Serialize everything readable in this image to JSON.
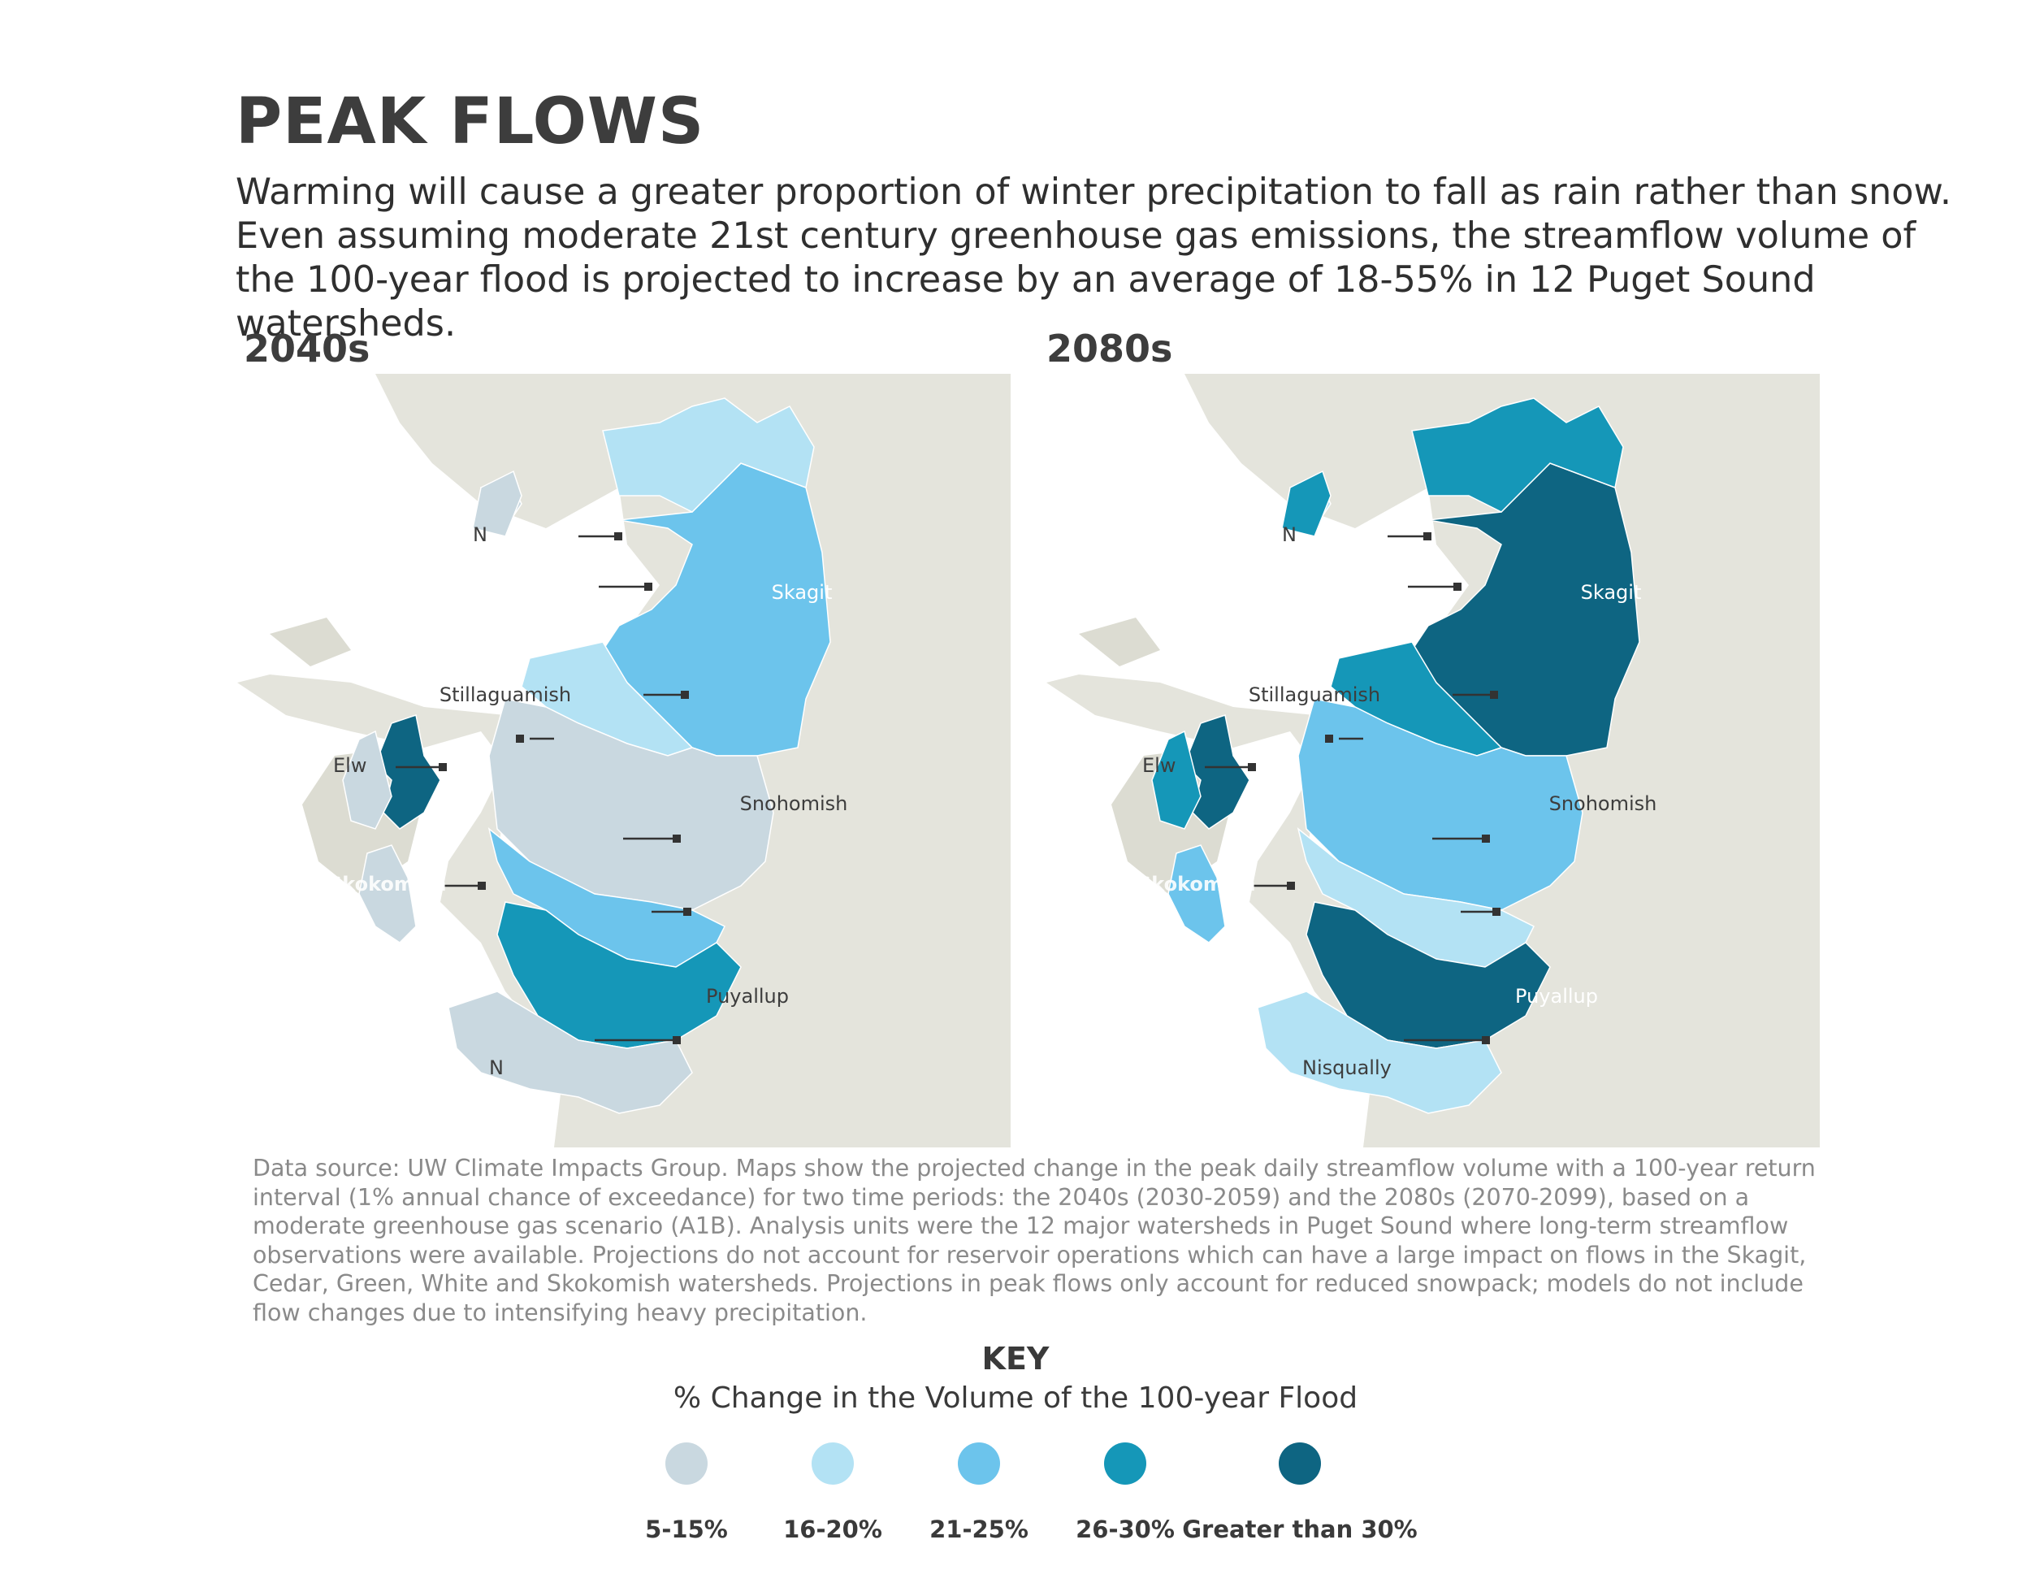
{
  "title": "PEAK FLOWS",
  "intro": "Warming will cause a greater proportion of winter precipitation to fall as rain rather than snow. Even assuming moderate 21st century greenhouse gas emissions, the streamflow volume of the 100-year flood is projected to increase by an average of 18-55% in 12 Puget Sound watersheds.",
  "maps": [
    {
      "period": "2040s",
      "labels": {
        "skagit": "Skagit",
        "stillaguamish": "Stillaguamish",
        "elwha": "Elw",
        "snohomish": "Snohomish",
        "puyallup": "Puyallup",
        "nisqually": "N",
        "north": "N",
        "skokomish": "Skokomish"
      },
      "classes": {
        "skagit": "21-25%",
        "nooksack": "16-20%",
        "samish": "5-15%",
        "stillaguamish": "16-20%",
        "dungeness": "Greater than 30%",
        "elwha": "5-15%",
        "skokomish": "5-15%",
        "snohomish": "5-15%",
        "cedar": "21-25%",
        "puyallup": "26-30%",
        "nisqually": "5-15%"
      }
    },
    {
      "period": "2080s",
      "labels": {
        "skagit": "Skagit",
        "stillaguamish": "Stillaguamish",
        "elwha": "Elw",
        "snohomish": "Snohomish",
        "puyallup": "Puyallup",
        "nisqually": "Nisqually",
        "north": "N",
        "skokomish": "Skokomish"
      },
      "classes": {
        "skagit": "Greater than 30%",
        "nooksack": "26-30%",
        "samish": "16-20%",
        "stillaguamish": "26-30%",
        "dungeness": "Greater than 30%",
        "elwha": "26-30%",
        "skokomish": "21-25%",
        "snohomish": "21-25%",
        "cedar": "16-20%",
        "puyallup": "Greater than 30%",
        "nisqually": "16-20%"
      }
    }
  ],
  "source": "Data source: UW Climate Impacts Group. Maps show the projected change in the peak daily streamflow volume with a 100-year return interval (1% annual chance of exceedance) for two time periods: the 2040s (2030-2059) and the 2080s (2070-2099), based on a moderate greenhouse gas scenario (A1B). Analysis units were the 12 major watersheds in Puget Sound where long-term streamflow observations were available. Projections do not account for reservoir operations which can have a large impact on flows in the Skagit, Cedar, Green, White and Skokomish watersheds. Projections in peak flows only account for reduced snowpack; models do not include flow changes due to intensifying heavy precipitation.",
  "key": {
    "title": "KEY",
    "subtitle": "% Change in the Volume of the 100-year Flood",
    "items": [
      {
        "label": "5-15%",
        "color": "#c9d8e0"
      },
      {
        "label": "16-20%",
        "color": "#b3e2f4"
      },
      {
        "label": "21-25%",
        "color": "#6cc4ec"
      },
      {
        "label": "26-30%",
        "color": "#1597b8"
      },
      {
        "label": "Greater than 30%",
        "color": "#0e6582"
      }
    ]
  },
  "colors": {
    "land": "#e4e4dc",
    "water": "#ffffff",
    "text": "#3d3d3d",
    "source_text": "#8a8a8a"
  }
}
